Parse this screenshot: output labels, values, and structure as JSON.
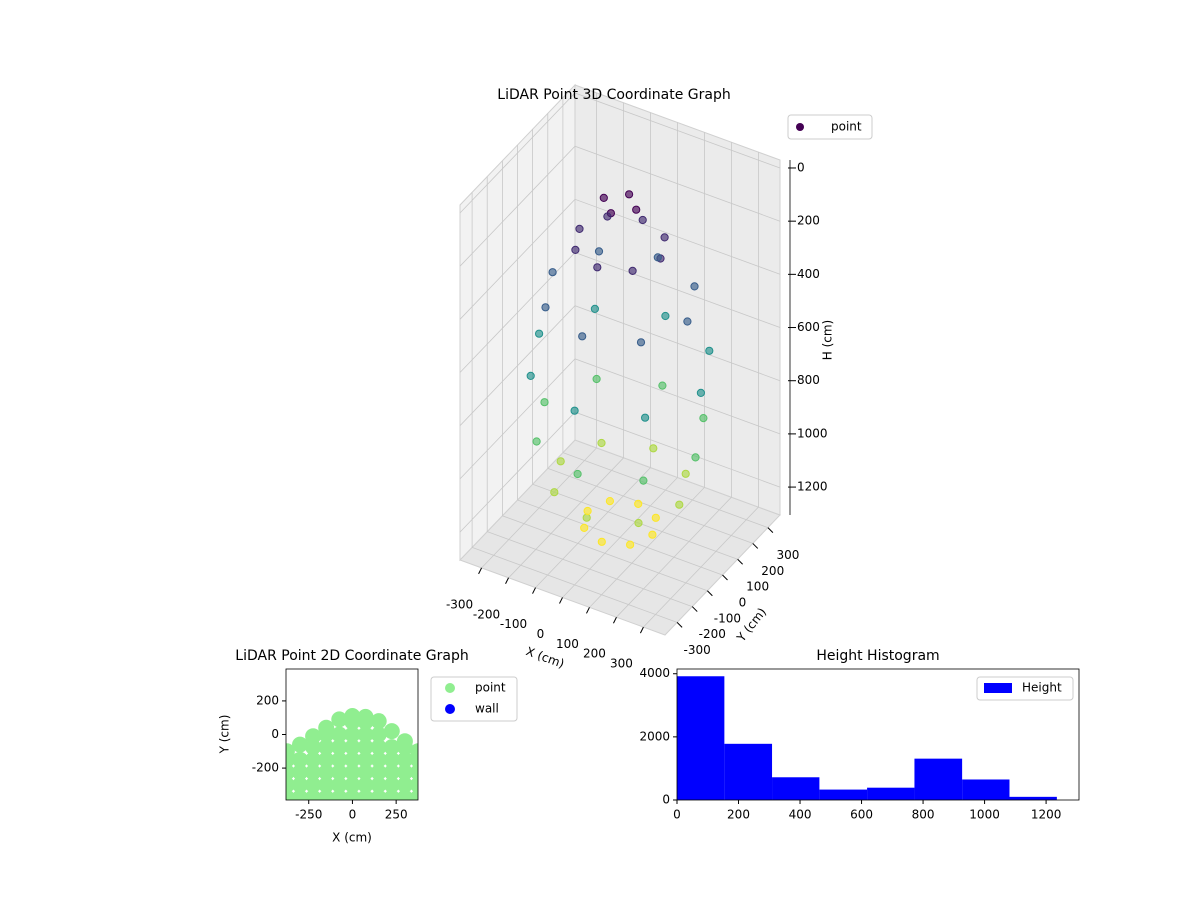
{
  "chart_data": [
    {
      "type": "scatter3d",
      "title": "LiDAR Point 3D Coordinate Graph",
      "xlabel": "X (cm)",
      "ylabel": "Y (cm)",
      "zlabel": "H (cm)",
      "xlim": [
        -380,
        380
      ],
      "ylim": [
        -380,
        380
      ],
      "zlim": [
        -30,
        1305
      ],
      "invert_z": true,
      "xticks": [
        -300,
        -200,
        -100,
        0,
        100,
        200,
        300
      ],
      "yticks": [
        -300,
        -200,
        -100,
        0,
        100,
        200,
        300
      ],
      "zticks": [
        0,
        200,
        400,
        600,
        800,
        1000,
        1200
      ],
      "colormap": "viridis",
      "legend": "upper right",
      "grid": true,
      "series": [
        {
          "name": "point",
          "color": "#440154",
          "x": [
            0,
            60,
            0,
            -60,
            150,
            106,
            0,
            -106,
            -150,
            -106,
            0,
            106,
            250,
            177,
            0,
            -177,
            -250,
            -177,
            0,
            177,
            300,
            212,
            0,
            -212,
            -300,
            -212,
            0,
            212,
            280,
            198,
            0,
            -198,
            -280,
            -198,
            0,
            198,
            220,
            156,
            0,
            -156,
            -220,
            -156,
            0,
            156,
            120,
            85,
            0,
            -85,
            -120,
            -85,
            0,
            85
          ],
          "y": [
            60,
            0,
            -60,
            0,
            0,
            106,
            150,
            106,
            0,
            -106,
            -150,
            -106,
            0,
            177,
            250,
            177,
            0,
            -177,
            -250,
            -177,
            0,
            212,
            300,
            212,
            0,
            -212,
            -300,
            -212,
            0,
            198,
            280,
            198,
            0,
            -198,
            -280,
            -198,
            0,
            156,
            220,
            156,
            0,
            -156,
            -220,
            -156,
            0,
            85,
            120,
            85,
            0,
            -85,
            -120,
            -85
          ],
          "z": [
            50,
            50,
            50,
            50,
            200,
            200,
            200,
            200,
            200,
            200,
            200,
            200,
            400,
            400,
            400,
            400,
            400,
            400,
            400,
            400,
            650,
            650,
            650,
            650,
            650,
            650,
            650,
            650,
            900,
            900,
            900,
            900,
            900,
            900,
            900,
            900,
            1100,
            1100,
            1100,
            1100,
            1100,
            1100,
            1100,
            1100,
            1250,
            1250,
            1250,
            1250,
            1250,
            1250,
            1250,
            1250
          ]
        }
      ]
    },
    {
      "type": "scatter",
      "title": "LiDAR Point 2D Coordinate Graph",
      "xlabel": "X (cm)",
      "ylabel": "Y (cm)",
      "xlim": [
        -380,
        375
      ],
      "ylim": [
        -390,
        390
      ],
      "xticks": [
        -250,
        0,
        250
      ],
      "yticks": [
        -200,
        0,
        200
      ],
      "legend": "outside right",
      "series": [
        {
          "name": "point",
          "color": "#90ee90",
          "x": [
            -375,
            -375,
            -375,
            -375,
            -375,
            -300,
            -300,
            -300,
            -300,
            -300,
            -225,
            -225,
            -225,
            -225,
            -225,
            -225,
            -150,
            -150,
            -150,
            -150,
            -150,
            -150,
            -150,
            -75,
            -75,
            -75,
            -75,
            -75,
            -75,
            -75,
            0,
            0,
            0,
            0,
            0,
            0,
            0,
            0,
            75,
            75,
            75,
            75,
            75,
            75,
            75,
            75,
            150,
            150,
            150,
            150,
            150,
            150,
            150,
            225,
            225,
            225,
            225,
            225,
            225,
            300,
            300,
            300,
            300,
            300,
            300,
            375,
            375,
            375,
            375,
            375
          ],
          "y": [
            -375,
            -300,
            -225,
            -150,
            -100,
            -375,
            -300,
            -225,
            -150,
            -60,
            -375,
            -300,
            -225,
            -150,
            -75,
            -10,
            -375,
            -300,
            -225,
            -150,
            -75,
            0,
            40,
            -375,
            -300,
            -225,
            -150,
            -75,
            0,
            90,
            -375,
            -300,
            -225,
            -150,
            -75,
            0,
            75,
            110,
            -375,
            -300,
            -225,
            -150,
            -75,
            0,
            75,
            105,
            -375,
            -300,
            -225,
            -150,
            -75,
            0,
            80,
            -375,
            -300,
            -225,
            -150,
            -75,
            20,
            -375,
            -300,
            -225,
            -150,
            -75,
            -40,
            -375,
            -300,
            -225,
            -150,
            -100
          ]
        },
        {
          "name": "wall",
          "color": "#0000ff",
          "x": [],
          "y": []
        }
      ]
    },
    {
      "type": "histogram",
      "title": "Height Histogram",
      "xlim": [
        0,
        1307
      ],
      "ylim": [
        0,
        4150
      ],
      "xticks": [
        0,
        200,
        400,
        600,
        800,
        1000,
        1200
      ],
      "yticks": [
        0,
        2000,
        4000
      ],
      "legend": "upper right",
      "bins": [
        0,
        154,
        309,
        463,
        618,
        772,
        927,
        1081,
        1235
      ],
      "series": [
        {
          "name": "Height",
          "color": "#0000ff",
          "values": [
            3920,
            1780,
            720,
            330,
            390,
            1310,
            650,
            100
          ]
        }
      ]
    }
  ]
}
